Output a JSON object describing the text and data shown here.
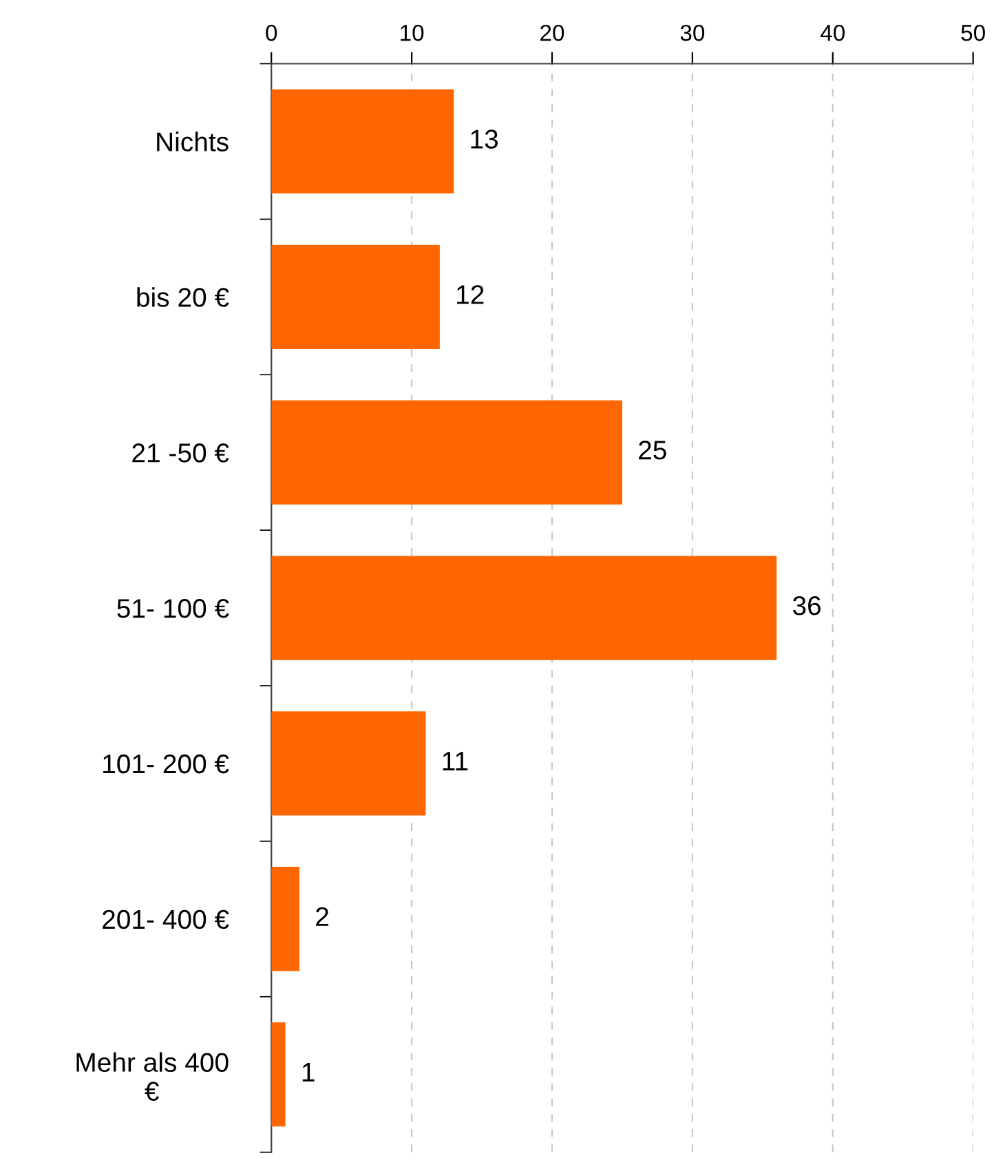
{
  "chart_data": {
    "type": "bar",
    "orientation": "horizontal",
    "categories": [
      "Nichts",
      "bis 20 €",
      "21 -50 €",
      "51- 100 €",
      "101- 200 €",
      "201- 400 €",
      "Mehr als 400\n€"
    ],
    "values": [
      13,
      12,
      25,
      36,
      11,
      2,
      1
    ],
    "color": "#ff6600",
    "xlim": [
      0,
      50
    ],
    "xticks": [
      0,
      10,
      20,
      30,
      40,
      50
    ],
    "grid": "x",
    "data_labels": true
  }
}
